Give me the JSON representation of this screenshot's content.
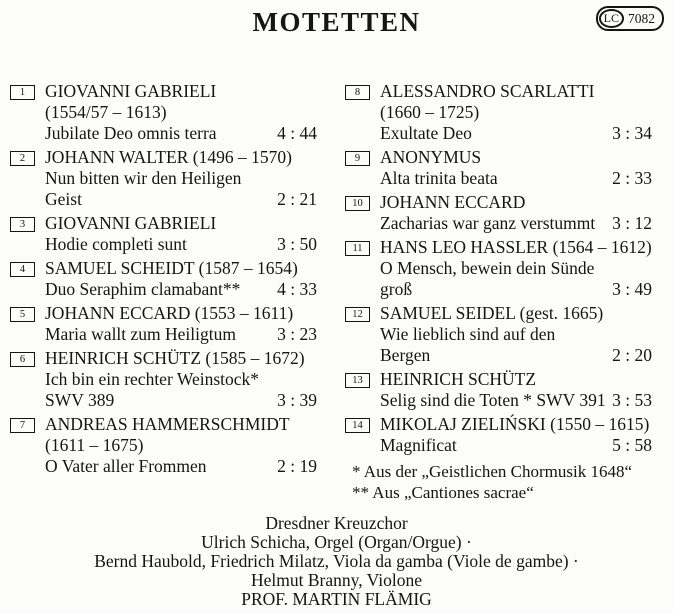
{
  "title": "MOTETTEN",
  "label_code": {
    "prefix": "LC",
    "number": "7082"
  },
  "columns": {
    "left": [
      {
        "track_no": "1",
        "lines": [
          {
            "text": "GIOVANNI GABRIELI"
          },
          {
            "text": "(1554/57 – 1613)"
          },
          {
            "text": "Jubilate Deo omnis terra",
            "time": "4 : 44"
          }
        ]
      },
      {
        "track_no": "2",
        "lines": [
          {
            "text": "JOHANN WALTER (1496 – 1570)"
          },
          {
            "text": "Nun bitten wir den Heiligen"
          },
          {
            "text": "Geist",
            "time": "2 : 21"
          }
        ]
      },
      {
        "track_no": "3",
        "lines": [
          {
            "text": "GIOVANNI GABRIELI"
          },
          {
            "text": "Hodie completi sunt",
            "time": "3 : 50"
          }
        ]
      },
      {
        "track_no": "4",
        "lines": [
          {
            "text": "SAMUEL SCHEIDT (1587 – 1654)"
          },
          {
            "text": "Duo Seraphim clamabant**",
            "time": "4 : 33"
          }
        ]
      },
      {
        "track_no": "5",
        "lines": [
          {
            "text": "JOHANN ECCARD (1553 – 1611)"
          },
          {
            "text": "Maria wallt zum Heiligtum",
            "time": "3 : 23"
          }
        ]
      },
      {
        "track_no": "6",
        "lines": [
          {
            "text": "HEINRICH SCHÜTZ (1585 – 1672)"
          },
          {
            "text": "Ich bin ein rechter Weinstock*"
          },
          {
            "text": "SWV 389",
            "time": "3 : 39"
          }
        ]
      },
      {
        "track_no": "7",
        "lines": [
          {
            "text": "ANDREAS HAMMERSCHMIDT"
          },
          {
            "text": "(1611 – 1675)"
          },
          {
            "text": "O Vater aller Frommen",
            "time": "2 : 19"
          }
        ]
      }
    ],
    "right": [
      {
        "track_no": "8",
        "lines": [
          {
            "text": "ALESSANDRO SCARLATTI"
          },
          {
            "text": "(1660 – 1725)"
          },
          {
            "text": "Exultate Deo",
            "time": "3 : 34"
          }
        ]
      },
      {
        "track_no": "9",
        "lines": [
          {
            "text": "ANONYMUS"
          },
          {
            "text": "Alta trinita beata",
            "time": "2 : 33"
          }
        ]
      },
      {
        "track_no": "10",
        "lines": [
          {
            "text": "JOHANN ECCARD"
          },
          {
            "text": "Zacharias war ganz verstummt",
            "time": "3 : 12"
          }
        ]
      },
      {
        "track_no": "11",
        "lines": [
          {
            "text": "HANS LEO HASSLER (1564 – 1612)"
          },
          {
            "text": "O Mensch, bewein dein Sünde"
          },
          {
            "text": "groß",
            "time": "3 : 49"
          }
        ]
      },
      {
        "track_no": "12",
        "lines": [
          {
            "text": "SAMUEL SEIDEL (gest. 1665)"
          },
          {
            "text": "Wie lieblich sind auf den"
          },
          {
            "text": "Bergen",
            "time": "2 : 20"
          }
        ]
      },
      {
        "track_no": "13",
        "lines": [
          {
            "text": "HEINRICH SCHÜTZ"
          },
          {
            "text": "Selig sind die Toten * SWV 391",
            "time": "3 : 53"
          }
        ]
      },
      {
        "track_no": "14",
        "lines": [
          {
            "text": "MIKOLAJ ZIELIŃSKI (1550 – 1615)"
          },
          {
            "text": "Magnificat",
            "time": "5 : 58"
          }
        ]
      }
    ]
  },
  "footnotes": [
    "* Aus der „Geistlichen Chormusik 1648“",
    "** Aus „Cantiones sacrae“"
  ],
  "credits": [
    "Dresdner Kreuzchor",
    "Ulrich Schicha, Orgel (Organ/Orgue) ·",
    "Bernd Haubold, Friedrich Milatz, Viola da gamba (Viole de gambe) ·",
    "Helmut Branny, Violone",
    "PROF. MARTIN FLÄMIG"
  ]
}
